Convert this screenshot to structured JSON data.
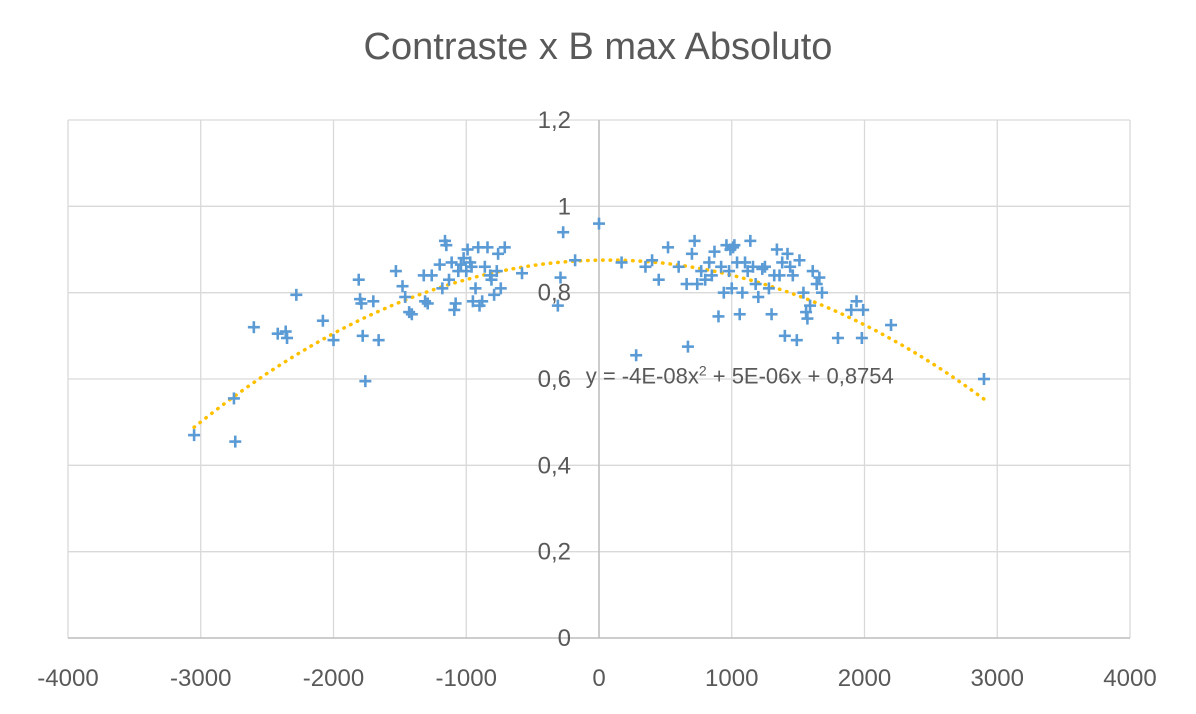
{
  "chart_data": {
    "type": "scatter",
    "title": "Contraste x B max Absoluto",
    "xlabel": "",
    "ylabel": "",
    "xlim": [
      -4000,
      4000
    ],
    "ylim": [
      0,
      1.2
    ],
    "x_ticks": [
      -4000,
      -3000,
      -2000,
      -1000,
      0,
      1000,
      2000,
      3000,
      4000
    ],
    "y_ticks": [
      0,
      0.2,
      0.4,
      0.6,
      0.8,
      1,
      1.2
    ],
    "x_tick_labels": [
      "-4000",
      "-3000",
      "-2000",
      "-1000",
      "0",
      "1000",
      "2000",
      "3000",
      "4000"
    ],
    "y_tick_labels": [
      "0",
      "0,2",
      "0,4",
      "0,6",
      "0,8",
      "1",
      "1,2"
    ],
    "grid": true,
    "marker": "plus",
    "marker_color": "#5B9BD5",
    "series": [
      {
        "points": [
          [
            -3050,
            0.47
          ],
          [
            -2750,
            0.555
          ],
          [
            -2740,
            0.455
          ],
          [
            -2600,
            0.72
          ],
          [
            -2420,
            0.705
          ],
          [
            -2360,
            0.71
          ],
          [
            -2350,
            0.695
          ],
          [
            -2280,
            0.795
          ],
          [
            -2080,
            0.735
          ],
          [
            -2000,
            0.69
          ],
          [
            -1810,
            0.83
          ],
          [
            -1800,
            0.785
          ],
          [
            -1790,
            0.775
          ],
          [
            -1780,
            0.7
          ],
          [
            -1760,
            0.595
          ],
          [
            -1700,
            0.78
          ],
          [
            -1660,
            0.69
          ],
          [
            -1530,
            0.85
          ],
          [
            -1480,
            0.815
          ],
          [
            -1460,
            0.79
          ],
          [
            -1430,
            0.755
          ],
          [
            -1410,
            0.75
          ],
          [
            -1320,
            0.84
          ],
          [
            -1310,
            0.78
          ],
          [
            -1290,
            0.775
          ],
          [
            -1260,
            0.84
          ],
          [
            -1200,
            0.865
          ],
          [
            -1180,
            0.81
          ],
          [
            -1160,
            0.92
          ],
          [
            -1150,
            0.91
          ],
          [
            -1130,
            0.83
          ],
          [
            -1110,
            0.87
          ],
          [
            -1090,
            0.76
          ],
          [
            -1080,
            0.775
          ],
          [
            -1060,
            0.85
          ],
          [
            -1040,
            0.865
          ],
          [
            -1020,
            0.88
          ],
          [
            -1000,
            0.85
          ],
          [
            -990,
            0.9
          ],
          [
            -970,
            0.87
          ],
          [
            -960,
            0.86
          ],
          [
            -950,
            0.78
          ],
          [
            -930,
            0.81
          ],
          [
            -910,
            0.905
          ],
          [
            -900,
            0.77
          ],
          [
            -880,
            0.78
          ],
          [
            -860,
            0.86
          ],
          [
            -840,
            0.905
          ],
          [
            -820,
            0.84
          ],
          [
            -810,
            0.83
          ],
          [
            -790,
            0.795
          ],
          [
            -770,
            0.85
          ],
          [
            -760,
            0.89
          ],
          [
            -740,
            0.81
          ],
          [
            -710,
            0.905
          ],
          [
            -580,
            0.845
          ],
          [
            -310,
            0.77
          ],
          [
            -290,
            0.835
          ],
          [
            -270,
            0.94
          ],
          [
            -180,
            0.875
          ],
          [
            0,
            0.96
          ],
          [
            170,
            0.87
          ],
          [
            280,
            0.655
          ],
          [
            350,
            0.86
          ],
          [
            400,
            0.875
          ],
          [
            450,
            0.83
          ],
          [
            520,
            0.905
          ],
          [
            600,
            0.86
          ],
          [
            660,
            0.82
          ],
          [
            670,
            0.675
          ],
          [
            700,
            0.89
          ],
          [
            720,
            0.92
          ],
          [
            740,
            0.82
          ],
          [
            770,
            0.85
          ],
          [
            800,
            0.83
          ],
          [
            830,
            0.87
          ],
          [
            850,
            0.84
          ],
          [
            870,
            0.895
          ],
          [
            900,
            0.745
          ],
          [
            920,
            0.86
          ],
          [
            940,
            0.8
          ],
          [
            960,
            0.91
          ],
          [
            980,
            0.85
          ],
          [
            990,
            0.9
          ],
          [
            1000,
            0.81
          ],
          [
            1010,
            0.905
          ],
          [
            1020,
            0.91
          ],
          [
            1040,
            0.87
          ],
          [
            1060,
            0.75
          ],
          [
            1080,
            0.8
          ],
          [
            1100,
            0.87
          ],
          [
            1120,
            0.85
          ],
          [
            1140,
            0.92
          ],
          [
            1160,
            0.86
          ],
          [
            1180,
            0.82
          ],
          [
            1200,
            0.79
          ],
          [
            1230,
            0.855
          ],
          [
            1250,
            0.86
          ],
          [
            1280,
            0.81
          ],
          [
            1300,
            0.75
          ],
          [
            1320,
            0.84
          ],
          [
            1340,
            0.9
          ],
          [
            1360,
            0.84
          ],
          [
            1380,
            0.87
          ],
          [
            1400,
            0.7
          ],
          [
            1420,
            0.89
          ],
          [
            1440,
            0.86
          ],
          [
            1460,
            0.84
          ],
          [
            1490,
            0.69
          ],
          [
            1510,
            0.875
          ],
          [
            1540,
            0.8
          ],
          [
            1560,
            0.755
          ],
          [
            1570,
            0.74
          ],
          [
            1590,
            0.77
          ],
          [
            1610,
            0.85
          ],
          [
            1640,
            0.82
          ],
          [
            1660,
            0.835
          ],
          [
            1680,
            0.8
          ],
          [
            1800,
            0.695
          ],
          [
            1900,
            0.76
          ],
          [
            1940,
            0.78
          ],
          [
            1980,
            0.695
          ],
          [
            1990,
            0.76
          ],
          [
            2200,
            0.725
          ],
          [
            2900,
            0.6
          ]
        ]
      }
    ],
    "trendline": {
      "type": "polynomial",
      "coefficients": [
        -4e-08,
        5e-06,
        0.8754
      ],
      "x_range": [
        -3050,
        2900
      ],
      "color": "#FFC000",
      "style": "dotted",
      "equation_label": "y = -4E-08x",
      "equation_superscript": "2",
      "equation_rest": " + 5E-06x + 0,8754",
      "label_at": [
        -100,
        0.59
      ]
    }
  }
}
